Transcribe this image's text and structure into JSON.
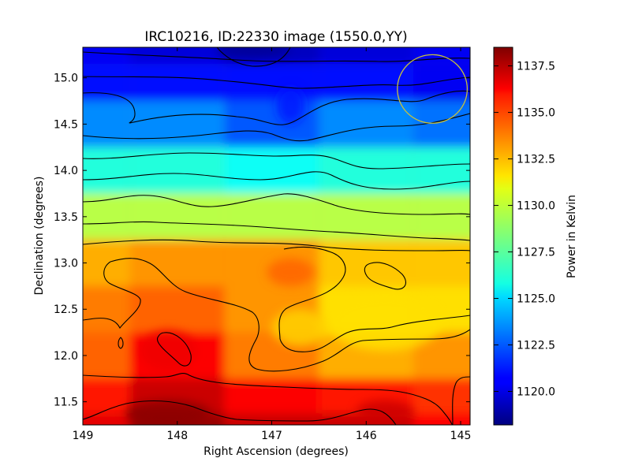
{
  "chart_data": {
    "type": "heatmap",
    "title": "IRC10216, ID:22330 image (1550.0,YY)",
    "xlabel": "Right Ascension (degrees)",
    "ylabel": "Declination (degrees)",
    "xlim": [
      149.0,
      144.9
    ],
    "ylim": [
      11.25,
      15.33
    ],
    "x_ticks": [
      {
        "value": 149,
        "label": "149"
      },
      {
        "value": 148,
        "label": "148"
      },
      {
        "value": 147,
        "label": "147"
      },
      {
        "value": 146,
        "label": "146"
      },
      {
        "value": 145,
        "label": "145"
      }
    ],
    "y_ticks": [
      {
        "value": 11.5,
        "label": "11.5"
      },
      {
        "value": 12.0,
        "label": "12.0"
      },
      {
        "value": 12.5,
        "label": "12.5"
      },
      {
        "value": 13.0,
        "label": "13.0"
      },
      {
        "value": 13.5,
        "label": "13.5"
      },
      {
        "value": 14.0,
        "label": "14.0"
      },
      {
        "value": 14.5,
        "label": "14.5"
      },
      {
        "value": 15.0,
        "label": "15.0"
      }
    ],
    "colorbar": {
      "label": "Power in Kelvin",
      "range": [
        1118.2,
        1138.5
      ],
      "ticks": [
        {
          "value": 1120.0,
          "label": "1120.0"
        },
        {
          "value": 1122.5,
          "label": "1122.5"
        },
        {
          "value": 1125.0,
          "label": "1125.0"
        },
        {
          "value": 1127.5,
          "label": "1127.5"
        },
        {
          "value": 1130.0,
          "label": "1130.0"
        },
        {
          "value": 1132.5,
          "label": "1132.5"
        },
        {
          "value": 1135.0,
          "label": "1135.0"
        },
        {
          "value": 1137.5,
          "label": "1137.5"
        }
      ],
      "colormap": "jet"
    },
    "marker": {
      "shape": "circle",
      "color": "#c8c23c",
      "ra": 145.3,
      "dec": 14.88,
      "radius_deg": 0.37
    },
    "values_approx": {
      "x_dec_grid": [
        149.0,
        148.0,
        147.0,
        146.0,
        145.0
      ],
      "rows": [
        {
          "dec": 15.3,
          "values": [
            1120.5,
            1120.0,
            1119.5,
            1120.0,
            1120.5
          ]
        },
        {
          "dec": 15.0,
          "values": [
            1121.0,
            1121.0,
            1121.0,
            1121.0,
            1120.5
          ]
        },
        {
          "dec": 14.5,
          "values": [
            1123.5,
            1123.5,
            1122.5,
            1123.5,
            1123.0
          ]
        },
        {
          "dec": 14.0,
          "values": [
            1126.5,
            1126.5,
            1126.0,
            1126.5,
            1126.5
          ]
        },
        {
          "dec": 13.5,
          "values": [
            1129.5,
            1129.5,
            1129.5,
            1129.5,
            1129.5
          ]
        },
        {
          "dec": 13.0,
          "values": [
            1132.5,
            1133.0,
            1133.0,
            1132.0,
            1132.0
          ]
        },
        {
          "dec": 12.5,
          "values": [
            1133.5,
            1134.0,
            1133.0,
            1131.5,
            1131.5
          ]
        },
        {
          "dec": 12.0,
          "values": [
            1134.0,
            1136.0,
            1133.5,
            1132.5,
            1133.0
          ]
        },
        {
          "dec": 11.5,
          "values": [
            1135.5,
            1137.0,
            1136.0,
            1135.5,
            1135.0
          ]
        },
        {
          "dec": 11.25,
          "values": [
            1136.5,
            1138.0,
            1137.0,
            1137.0,
            1136.0
          ]
        }
      ]
    },
    "contour_levels": [
      1121.0,
      1122.5,
      1124.0,
      1125.5,
      1127.0,
      1128.5,
      1130.0,
      1131.5,
      1133.0,
      1134.5,
      1136.0
    ]
  }
}
